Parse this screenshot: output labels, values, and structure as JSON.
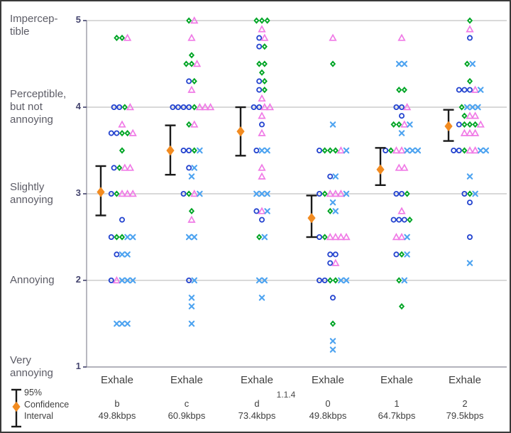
{
  "chart_data": {
    "type": "scatter",
    "title": "",
    "yaxis": {
      "ticks": [
        "5",
        "4",
        "3",
        "2",
        "1"
      ],
      "tick_values": [
        5,
        4,
        3,
        2,
        1
      ],
      "labels": [
        "Impercep-\ntible",
        "Perceptible,\nbut not\nannoying",
        "Slightly\nannoying",
        "Annoying",
        "Very\nannoying"
      ],
      "ylim": [
        1,
        5
      ],
      "grid": "horizontal lines at 2,3,4,5"
    },
    "session_label": "1.1.4",
    "legend": {
      "label": "95%\nConfidence\nInterval",
      "position": "bottom-left"
    },
    "marker_key": {
      "b": "blue-open-circle",
      "g": "green-diamond",
      "p": "pink-open-triangle",
      "x": "blue-x-cross"
    },
    "colors": {
      "circle": "#2343cf",
      "diamond": "#00a526",
      "triangle": "#f07ae6",
      "x": "#4da3f0",
      "ci_diamond": "#f28b20",
      "error_bar": "#1a1a1a",
      "gridline": "#b3b3b3",
      "axis": "#9a9aa5",
      "tick": "#55557a"
    },
    "columns": [
      {
        "group": "Exhale",
        "code": "b",
        "bitrate": "49.8kbps",
        "ci": {
          "mean": 3.02,
          "low": 2.75,
          "high": 3.32
        },
        "points": [
          {
            "r": 4.8,
            "m": "ggp"
          },
          {
            "r": 4.0,
            "m": "bbgp"
          },
          {
            "r": 3.8,
            "m": "p"
          },
          {
            "r": 3.7,
            "m": "bbggp"
          },
          {
            "r": 3.5,
            "m": "g"
          },
          {
            "r": 3.3,
            "m": "bgpp"
          },
          {
            "r": 3.0,
            "m": "bgppp"
          },
          {
            "r": 2.7,
            "m": "b"
          },
          {
            "r": 2.5,
            "m": "bggxx"
          },
          {
            "r": 2.3,
            "m": "bxx"
          },
          {
            "r": 2.0,
            "m": "bpxxx"
          },
          {
            "r": 1.5,
            "m": "xxx"
          }
        ]
      },
      {
        "group": "Exhale",
        "code": "c",
        "bitrate": "60.9kbps",
        "ci": {
          "mean": 3.5,
          "low": 3.22,
          "high": 3.79
        },
        "points": [
          {
            "r": 5.0,
            "m": "gp"
          },
          {
            "r": 4.8,
            "m": "p"
          },
          {
            "r": 4.6,
            "m": "g"
          },
          {
            "r": 4.5,
            "m": "ggp"
          },
          {
            "r": 4.3,
            "m": "bg"
          },
          {
            "r": 4.2,
            "m": "p"
          },
          {
            "r": 4.0,
            "m": "bbbbgppp"
          },
          {
            "r": 3.8,
            "m": "gp"
          },
          {
            "r": 3.5,
            "m": "bbgx"
          },
          {
            "r": 3.3,
            "m": "bx"
          },
          {
            "r": 3.2,
            "m": "x"
          },
          {
            "r": 3.0,
            "m": "bgpx"
          },
          {
            "r": 2.8,
            "m": "g"
          },
          {
            "r": 2.7,
            "m": "p"
          },
          {
            "r": 2.5,
            "m": "xx"
          },
          {
            "r": 2.0,
            "m": "bx"
          },
          {
            "r": 1.8,
            "m": "x"
          },
          {
            "r": 1.7,
            "m": "x"
          },
          {
            "r": 1.5,
            "m": "x"
          }
        ]
      },
      {
        "group": "Exhale",
        "code": "d",
        "bitrate": "73.4kbps",
        "ci": {
          "mean": 3.72,
          "low": 3.44,
          "high": 4.0
        },
        "points": [
          {
            "r": 5.0,
            "m": "ggg"
          },
          {
            "r": 4.9,
            "m": "p"
          },
          {
            "r": 4.8,
            "m": "bp"
          },
          {
            "r": 4.7,
            "m": "bg"
          },
          {
            "r": 4.5,
            "m": "gg"
          },
          {
            "r": 4.4,
            "m": "g"
          },
          {
            "r": 4.3,
            "m": "bg"
          },
          {
            "r": 4.2,
            "m": "bg"
          },
          {
            "r": 4.1,
            "m": "p"
          },
          {
            "r": 4.0,
            "m": "bbpp"
          },
          {
            "r": 3.9,
            "m": "p"
          },
          {
            "r": 3.8,
            "m": "b"
          },
          {
            "r": 3.7,
            "m": "p"
          },
          {
            "r": 3.5,
            "m": "bxx"
          },
          {
            "r": 3.3,
            "m": "p"
          },
          {
            "r": 3.2,
            "m": "p"
          },
          {
            "r": 3.0,
            "m": "xxx"
          },
          {
            "r": 2.8,
            "m": "bpx"
          },
          {
            "r": 2.7,
            "m": "b"
          },
          {
            "r": 2.5,
            "m": "gx"
          },
          {
            "r": 2.0,
            "m": "xx"
          },
          {
            "r": 1.8,
            "m": "x"
          }
        ]
      },
      {
        "group": "Exhale",
        "code": "0",
        "bitrate": "49.8kbps",
        "ci": {
          "mean": 2.72,
          "low": 2.5,
          "high": 2.98
        },
        "points": [
          {
            "r": 4.8,
            "m": "p"
          },
          {
            "r": 4.5,
            "m": "g"
          },
          {
            "r": 3.8,
            "m": "x"
          },
          {
            "r": 3.5,
            "m": "bgggpx"
          },
          {
            "r": 3.2,
            "m": "bx"
          },
          {
            "r": 3.0,
            "m": "bgpppx"
          },
          {
            "r": 2.9,
            "m": "x"
          },
          {
            "r": 2.8,
            "m": "gx"
          },
          {
            "r": 2.5,
            "m": "bgpppp"
          },
          {
            "r": 2.3,
            "m": "bb"
          },
          {
            "r": 2.2,
            "m": "bp"
          },
          {
            "r": 2.0,
            "m": "bbggxx"
          },
          {
            "r": 1.8,
            "m": "b"
          },
          {
            "r": 1.5,
            "m": "g"
          },
          {
            "r": 1.3,
            "m": "x"
          },
          {
            "r": 1.2,
            "m": "x"
          }
        ]
      },
      {
        "group": "Exhale",
        "code": "1",
        "bitrate": "64.7kbps",
        "ci": {
          "mean": 3.28,
          "low": 3.1,
          "high": 3.53
        },
        "points": [
          {
            "r": 4.8,
            "m": "p"
          },
          {
            "r": 4.5,
            "m": "xx"
          },
          {
            "r": 4.2,
            "m": "gg"
          },
          {
            "r": 4.0,
            "m": "bbp"
          },
          {
            "r": 3.9,
            "m": "b"
          },
          {
            "r": 3.8,
            "m": "ggpx"
          },
          {
            "r": 3.7,
            "m": "x"
          },
          {
            "r": 3.5,
            "m": "bgppxxx"
          },
          {
            "r": 3.3,
            "m": "pp"
          },
          {
            "r": 3.0,
            "m": "bbg"
          },
          {
            "r": 2.8,
            "m": "p"
          },
          {
            "r": 2.7,
            "m": "bbbg"
          },
          {
            "r": 2.5,
            "m": "ppx"
          },
          {
            "r": 2.3,
            "m": "bgx"
          },
          {
            "r": 2.0,
            "m": "gx"
          },
          {
            "r": 1.7,
            "m": "g"
          }
        ]
      },
      {
        "group": "Exhale",
        "code": "2",
        "bitrate": "79.5kbps",
        "ci": {
          "mean": 3.78,
          "low": 3.61,
          "high": 3.97
        },
        "points": [
          {
            "r": 5.0,
            "m": "g"
          },
          {
            "r": 4.9,
            "m": "p"
          },
          {
            "r": 4.8,
            "m": "b"
          },
          {
            "r": 4.5,
            "m": "gx"
          },
          {
            "r": 4.3,
            "m": "g"
          },
          {
            "r": 4.2,
            "m": "bbbpx"
          },
          {
            "r": 4.0,
            "m": "gxxx"
          },
          {
            "r": 3.9,
            "m": "gpp"
          },
          {
            "r": 3.8,
            "m": "bgggp"
          },
          {
            "r": 3.7,
            "m": "ppp"
          },
          {
            "r": 3.5,
            "m": "bbgppxx"
          },
          {
            "r": 3.2,
            "m": "x"
          },
          {
            "r": 3.0,
            "m": "bgx"
          },
          {
            "r": 2.9,
            "m": "b"
          },
          {
            "r": 2.5,
            "m": "b"
          },
          {
            "r": 2.2,
            "m": "x"
          }
        ]
      }
    ]
  }
}
